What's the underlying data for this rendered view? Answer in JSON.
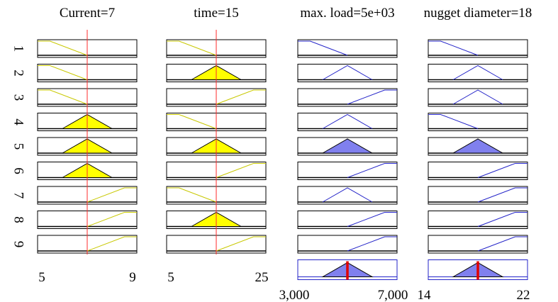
{
  "chart_data": {
    "type": "fuzzy-rule-viewer",
    "columns": [
      {
        "title": "Current=7",
        "kind": "input",
        "range": [
          5,
          9
        ],
        "tick_labels": [
          "5",
          "9"
        ],
        "value": 7,
        "membership_functions": [
          {
            "name": "low",
            "points": [
              5,
              5,
              5.5,
              7
            ]
          },
          {
            "name": "medium",
            "points": [
              6,
              7,
              8
            ]
          },
          {
            "name": "high",
            "points": [
              7,
              8.5,
              9,
              9
            ]
          }
        ]
      },
      {
        "title": "time=15",
        "kind": "input",
        "range": [
          5,
          25
        ],
        "tick_labels": [
          "5",
          "25"
        ],
        "value": 15,
        "membership_functions": [
          {
            "name": "low",
            "points": [
              5,
              5,
              7.5,
              15
            ]
          },
          {
            "name": "medium",
            "points": [
              10,
              15,
              20
            ]
          },
          {
            "name": "high",
            "points": [
              15,
              22.5,
              25,
              25
            ]
          }
        ]
      },
      {
        "title": "max. load=5e+03",
        "kind": "output",
        "range": [
          3000,
          7000
        ],
        "tick_labels": [
          "3,000",
          "7,000"
        ],
        "value": 5000,
        "membership_functions": [
          {
            "name": "low",
            "points": [
              3000,
              3000,
              3500,
              5000
            ]
          },
          {
            "name": "medium",
            "points": [
              4000,
              5000,
              6000
            ]
          },
          {
            "name": "high",
            "points": [
              5000,
              6500,
              7000,
              7000
            ]
          }
        ]
      },
      {
        "title": "nugget diameter=18",
        "kind": "output",
        "range": [
          14,
          22
        ],
        "tick_labels": [
          "14",
          "22"
        ],
        "value": 18,
        "membership_functions": [
          {
            "name": "low",
            "points": [
              14,
              14,
              15,
              18
            ]
          },
          {
            "name": "medium",
            "points": [
              16,
              18,
              20
            ]
          },
          {
            "name": "high",
            "points": [
              18,
              21,
              22,
              22
            ]
          }
        ]
      }
    ],
    "rules": [
      {
        "label": "1",
        "mfs": [
          "low",
          "low",
          "low",
          "low"
        ],
        "fired": [
          false,
          false,
          false,
          false
        ]
      },
      {
        "label": "2",
        "mfs": [
          "low",
          "medium",
          "medium",
          "medium"
        ],
        "fired": [
          false,
          true,
          false,
          false
        ]
      },
      {
        "label": "3",
        "mfs": [
          "low",
          "high",
          "high",
          "medium"
        ],
        "fired": [
          false,
          false,
          false,
          false
        ]
      },
      {
        "label": "4",
        "mfs": [
          "medium",
          "low",
          "medium",
          "low"
        ],
        "fired": [
          true,
          false,
          false,
          false
        ]
      },
      {
        "label": "5",
        "mfs": [
          "medium",
          "medium",
          "medium",
          "medium"
        ],
        "fired": [
          true,
          true,
          true,
          true
        ]
      },
      {
        "label": "6",
        "mfs": [
          "medium",
          "high",
          "high",
          "high"
        ],
        "fired": [
          true,
          false,
          false,
          false
        ]
      },
      {
        "label": "7",
        "mfs": [
          "high",
          "low",
          "medium",
          "high"
        ],
        "fired": [
          false,
          false,
          false,
          false
        ]
      },
      {
        "label": "8",
        "mfs": [
          "high",
          "medium",
          "high",
          "high"
        ],
        "fired": [
          false,
          true,
          false,
          false
        ]
      },
      {
        "label": "9",
        "mfs": [
          "high",
          "high",
          "high",
          "high"
        ],
        "fired": [
          false,
          false,
          false,
          false
        ]
      }
    ],
    "aggregate": {
      "shown_for": "outputs",
      "shape": "medium"
    },
    "colors": {
      "input_line": "#c8c800",
      "input_fill": "#ffff00",
      "output_line": "#2323c8",
      "output_fill": "#8080ee",
      "marker_input": "#ff2b2b",
      "marker_output": "#e00000",
      "frame": "#000000"
    }
  }
}
